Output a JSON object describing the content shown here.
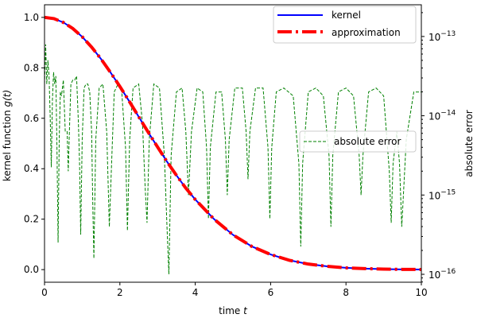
{
  "chart_data": {
    "type": "line",
    "title": "",
    "xlabel_main": "time ",
    "xlabel_var": "t",
    "ylabel_left_main": "kernel function ",
    "ylabel_left_var": "g(t)",
    "ylabel_right": "absolute error",
    "xlim": [
      0,
      10
    ],
    "ylim_left": [
      -0.05,
      1.05
    ],
    "ylim_right_log10": [
      -16.1,
      -12.6
    ],
    "x_ticks": [
      0,
      2,
      4,
      6,
      8,
      10
    ],
    "y_left_ticks": [
      0.0,
      0.2,
      0.4,
      0.6,
      0.8,
      1.0
    ],
    "y_right_tick_exponents": [
      -16,
      -15,
      -14,
      -13
    ],
    "grid": false,
    "legend_main": {
      "placement": "top-right",
      "entries": [
        "kernel",
        "approximation"
      ]
    },
    "legend_error": {
      "placement": "center-right",
      "entries": [
        "absolute error"
      ]
    },
    "series": [
      {
        "name": "kernel",
        "axis": "left",
        "color": "#0000ff",
        "style": "solid",
        "x": [
          0,
          0.25,
          0.5,
          0.75,
          1.0,
          1.25,
          1.5,
          1.75,
          2.0,
          2.25,
          2.5,
          2.75,
          3.0,
          3.25,
          3.5,
          3.75,
          4.0,
          4.5,
          5.0,
          5.5,
          6.0,
          6.5,
          7.0,
          7.5,
          8.0,
          8.5,
          9.0,
          9.5,
          10.0
        ],
        "y": [
          1.0,
          0.995,
          0.98,
          0.956,
          0.923,
          0.882,
          0.835,
          0.782,
          0.726,
          0.667,
          0.606,
          0.545,
          0.486,
          0.428,
          0.374,
          0.323,
          0.278,
          0.2,
          0.138,
          0.092,
          0.06,
          0.037,
          0.022,
          0.013,
          0.007,
          0.004,
          0.002,
          0.001,
          0.0005
        ]
      },
      {
        "name": "approximation",
        "axis": "left",
        "color": "#ff0000",
        "style": "dashdot",
        "x": [
          0,
          0.25,
          0.5,
          0.75,
          1.0,
          1.25,
          1.5,
          1.75,
          2.0,
          2.25,
          2.5,
          2.75,
          3.0,
          3.25,
          3.5,
          3.75,
          4.0,
          4.5,
          5.0,
          5.5,
          6.0,
          6.5,
          7.0,
          7.5,
          8.0,
          8.5,
          9.0,
          9.5,
          10.0
        ],
        "y": [
          1.0,
          0.995,
          0.98,
          0.956,
          0.923,
          0.882,
          0.835,
          0.782,
          0.726,
          0.667,
          0.606,
          0.545,
          0.486,
          0.428,
          0.374,
          0.323,
          0.278,
          0.2,
          0.138,
          0.092,
          0.06,
          0.037,
          0.022,
          0.013,
          0.007,
          0.004,
          0.002,
          0.001,
          0.0005
        ]
      },
      {
        "name": "absolute error",
        "axis": "right",
        "color": "#008000",
        "style": "dashed",
        "x": [
          0.0,
          0.03,
          0.06,
          0.09,
          0.12,
          0.15,
          0.18,
          0.21,
          0.24,
          0.27,
          0.3,
          0.33,
          0.36,
          0.39,
          0.42,
          0.45,
          0.5,
          0.55,
          0.6,
          0.63,
          0.66,
          0.7,
          0.75,
          0.8,
          0.85,
          0.9,
          0.93,
          0.96,
          1.0,
          1.05,
          1.1,
          1.15,
          1.2,
          1.25,
          1.28,
          1.31,
          1.36,
          1.45,
          1.55,
          1.65,
          1.72,
          1.78,
          1.85,
          1.95,
          2.05,
          2.15,
          2.2,
          2.26,
          2.35,
          2.5,
          2.6,
          2.67,
          2.72,
          2.78,
          2.9,
          3.05,
          3.18,
          3.25,
          3.3,
          3.36,
          3.5,
          3.65,
          3.75,
          3.82,
          3.9,
          4.05,
          4.2,
          4.3,
          4.35,
          4.4,
          4.55,
          4.7,
          4.8,
          4.85,
          4.9,
          5.05,
          5.25,
          5.35,
          5.4,
          5.45,
          5.6,
          5.8,
          5.93,
          5.98,
          6.03,
          6.15,
          6.35,
          6.6,
          6.75,
          6.8,
          6.85,
          7.0,
          7.2,
          7.4,
          7.55,
          7.6,
          7.65,
          7.8,
          8.0,
          8.2,
          8.35,
          8.4,
          8.45,
          8.6,
          8.8,
          9.0,
          9.15,
          9.2,
          9.25,
          9.35,
          9.42,
          9.48,
          9.6,
          9.8,
          10.0
        ],
        "log10_y": [
          -13.6,
          -13.1,
          -13.6,
          -13.3,
          -13.5,
          -14.0,
          -14.65,
          -13.8,
          -13.45,
          -13.6,
          -13.5,
          -14.4,
          -15.6,
          -14.3,
          -13.7,
          -13.75,
          -13.55,
          -14.2,
          -14.2,
          -14.7,
          -14.2,
          -13.6,
          -13.55,
          -13.55,
          -13.5,
          -14.1,
          -14.6,
          -15.5,
          -14.3,
          -13.65,
          -13.6,
          -13.6,
          -13.7,
          -14.2,
          -15.1,
          -15.8,
          -14.3,
          -13.65,
          -13.6,
          -14.2,
          -15.4,
          -14.6,
          -13.7,
          -13.6,
          -13.7,
          -14.4,
          -15.45,
          -14.3,
          -13.65,
          -13.6,
          -14.1,
          -14.9,
          -15.35,
          -14.3,
          -13.6,
          -13.65,
          -14.5,
          -15.4,
          -16.0,
          -14.5,
          -13.7,
          -13.65,
          -14.2,
          -15.0,
          -14.2,
          -13.65,
          -13.7,
          -14.4,
          -15.3,
          -14.4,
          -13.7,
          -13.7,
          -14.3,
          -15.0,
          -14.3,
          -13.65,
          -13.65,
          -14.2,
          -14.8,
          -14.2,
          -13.65,
          -13.65,
          -14.4,
          -15.3,
          -14.4,
          -13.7,
          -13.65,
          -13.75,
          -14.6,
          -15.65,
          -14.6,
          -13.7,
          -13.65,
          -13.75,
          -14.5,
          -15.4,
          -14.5,
          -13.7,
          -13.65,
          -13.75,
          -14.5,
          -15.0,
          -14.5,
          -13.7,
          -13.65,
          -13.75,
          -14.7,
          -15.35,
          -14.6,
          -14.2,
          -14.6,
          -15.4,
          -14.3,
          -13.7,
          -13.7
        ]
      }
    ]
  }
}
